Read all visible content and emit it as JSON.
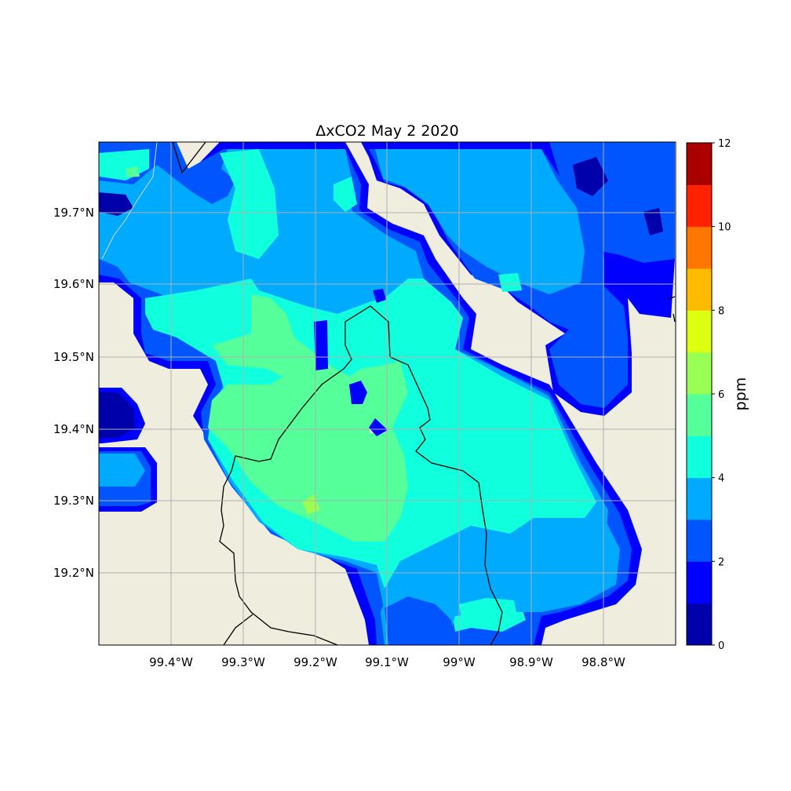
{
  "title": "ΔxCO2 May 2 2020",
  "colorbar": {
    "label": "ppm",
    "ticks": [
      "0",
      "2",
      "4",
      "6",
      "8",
      "10",
      "12"
    ],
    "levels": [
      0,
      1,
      2,
      3,
      4,
      5,
      6,
      7,
      8,
      9,
      10,
      11,
      12
    ],
    "colors": [
      "#0000aa",
      "#0000ff",
      "#0055ff",
      "#00aaff",
      "#10ffdd",
      "#55ff99",
      "#99ff55",
      "#ddff10",
      "#ffbb00",
      "#ff7700",
      "#ff2200",
      "#aa0000"
    ]
  },
  "axes": {
    "x_ticks": [
      "99.4°W",
      "99.3°W",
      "99.2°W",
      "99.1°W",
      "99°W",
      "98.9°W",
      "98.8°W"
    ],
    "y_ticks": [
      "19.7°N",
      "19.6°N",
      "19.5°N",
      "19.4°N",
      "19.3°N",
      "19.2°N"
    ],
    "land_color": "#efedde",
    "grid": true
  }
}
